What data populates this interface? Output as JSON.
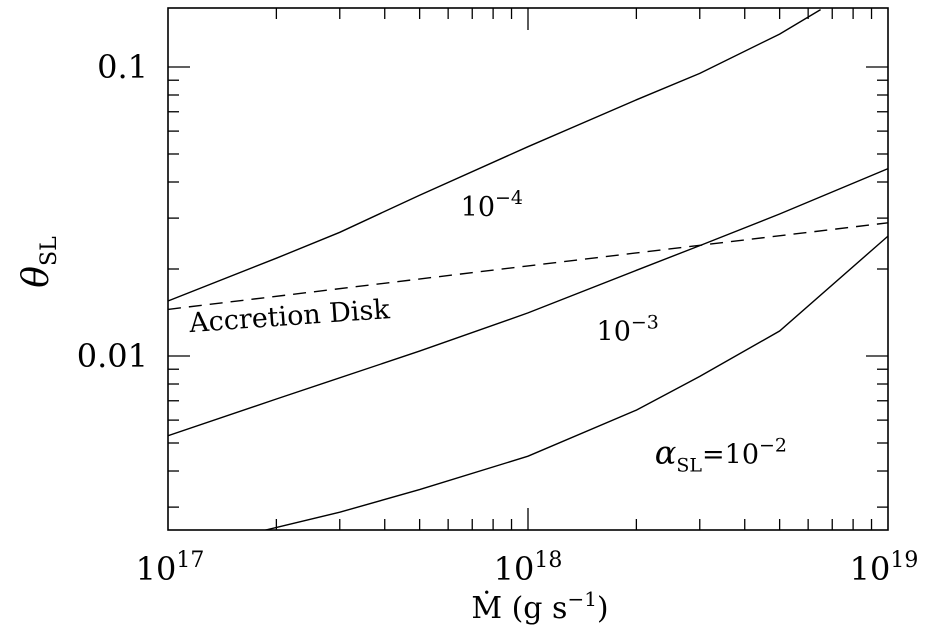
{
  "chart_data": {
    "type": "line",
    "xscale": "log",
    "yscale": "log",
    "xlim": [
      1e+17,
      1e+19
    ],
    "ylim": [
      0.0025,
      0.16
    ],
    "xlabel": "Ṁ (g s",
    "xlabel_sup": "−1",
    "xlabel_close": ")",
    "ylabel": "θ",
    "ylabel_sub": "SL",
    "x_tick_labels": [
      {
        "base": "10",
        "exp": "17",
        "value": 1e+17
      },
      {
        "base": "10",
        "exp": "18",
        "value": 1e+18
      },
      {
        "base": "10",
        "exp": "19",
        "value": 1e+19
      }
    ],
    "y_tick_labels": [
      {
        "text": "0.1",
        "value": 0.1
      },
      {
        "text": "0.01",
        "value": 0.01
      }
    ],
    "series": [
      {
        "label_base": "10",
        "label_exp": "−4",
        "label_at": [
          6.5e+17,
          0.0305
        ],
        "style": "solid",
        "x": [
          1e+17,
          2e+17,
          3e+17,
          5e+17,
          1e+18,
          2e+18,
          3e+18,
          5e+18,
          6.5e+18
        ],
        "y": [
          0.0155,
          0.0218,
          0.0268,
          0.036,
          0.053,
          0.077,
          0.095,
          0.13,
          0.158
        ]
      },
      {
        "label_base": "10",
        "label_exp": "−3",
        "label_at": [
          1.55e+18,
          0.0113
        ],
        "style": "solid",
        "x": [
          1e+17,
          2e+17,
          5e+17,
          1e+18,
          2e+18,
          3e+18,
          5e+18,
          1e+19
        ],
        "y": [
          0.0053,
          0.0071,
          0.0104,
          0.0141,
          0.0198,
          0.0241,
          0.031,
          0.0445
        ]
      },
      {
        "label_prefix": "α",
        "label_sub": "SL",
        "label_mid": "=10",
        "label_exp": "−2",
        "label_at": [
          2.25e+18,
          0.00425
        ],
        "style": "solid",
        "x": [
          1.75e+17,
          3e+17,
          5e+17,
          1e+18,
          2e+18,
          3e+18,
          5e+18,
          1e+19
        ],
        "y": [
          0.00245,
          0.00288,
          0.00345,
          0.0045,
          0.0065,
          0.0085,
          0.0122,
          0.026
        ]
      },
      {
        "label": "Accretion Disk",
        "label_at": [
          1.15e+17,
          0.0121
        ],
        "label_rotation_deg": -4,
        "style": "dashed",
        "x": [
          1e+17,
          1e+18,
          1e+19
        ],
        "y": [
          0.0145,
          0.0205,
          0.0289
        ]
      }
    ]
  }
}
